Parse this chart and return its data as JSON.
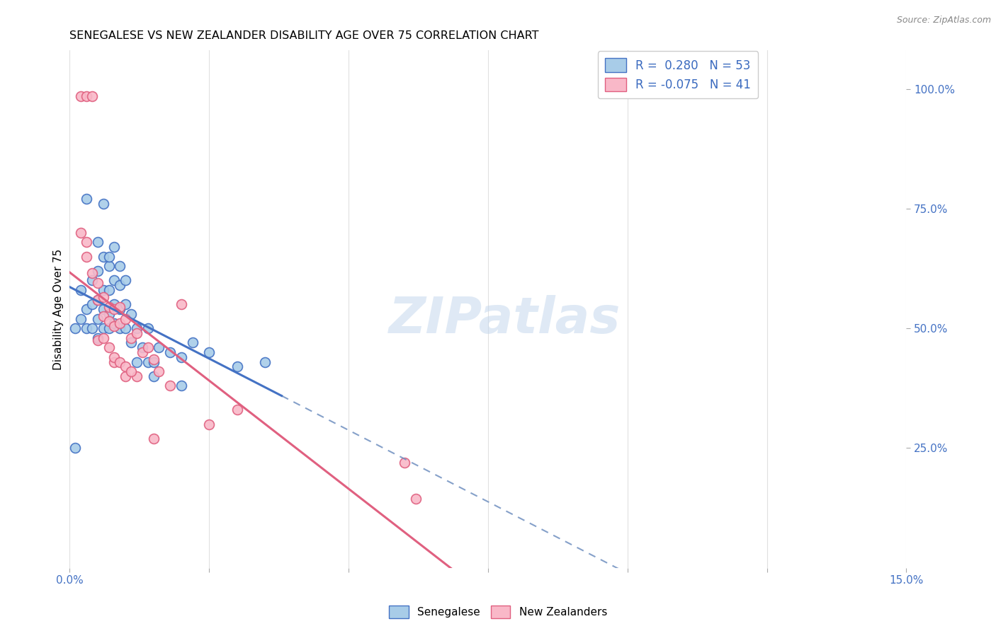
{
  "title": "SENEGALESE VS NEW ZEALANDER DISABILITY AGE OVER 75 CORRELATION CHART",
  "source": "Source: ZipAtlas.com",
  "ylabel": "Disability Age Over 75",
  "xlim": [
    0.0,
    0.15
  ],
  "ylim": [
    0.0,
    1.08
  ],
  "blue_color": "#a8cce8",
  "blue_edge": "#4472c4",
  "pink_color": "#f9b8c8",
  "pink_edge": "#e06080",
  "watermark_text": "ZIPatlas",
  "senegalese_x": [
    0.001,
    0.002,
    0.002,
    0.003,
    0.003,
    0.004,
    0.004,
    0.004,
    0.005,
    0.005,
    0.005,
    0.005,
    0.006,
    0.006,
    0.006,
    0.006,
    0.007,
    0.007,
    0.007,
    0.007,
    0.008,
    0.008,
    0.008,
    0.009,
    0.009,
    0.009,
    0.01,
    0.01,
    0.011,
    0.011,
    0.012,
    0.013,
    0.014,
    0.014,
    0.015,
    0.016,
    0.018,
    0.02,
    0.022,
    0.025,
    0.03,
    0.035,
    0.001,
    0.003,
    0.005,
    0.006,
    0.007,
    0.008,
    0.009,
    0.01,
    0.012,
    0.015,
    0.02
  ],
  "senegalese_y": [
    0.25,
    0.52,
    0.58,
    0.5,
    0.54,
    0.5,
    0.55,
    0.6,
    0.48,
    0.52,
    0.56,
    0.62,
    0.5,
    0.54,
    0.58,
    0.65,
    0.5,
    0.53,
    0.58,
    0.63,
    0.51,
    0.55,
    0.6,
    0.5,
    0.54,
    0.59,
    0.5,
    0.55,
    0.47,
    0.53,
    0.43,
    0.46,
    0.43,
    0.5,
    0.43,
    0.46,
    0.45,
    0.44,
    0.47,
    0.45,
    0.42,
    0.43,
    0.5,
    0.77,
    0.68,
    0.76,
    0.65,
    0.67,
    0.63,
    0.6,
    0.5,
    0.4,
    0.38
  ],
  "nz_x": [
    0.002,
    0.003,
    0.004,
    0.002,
    0.003,
    0.003,
    0.004,
    0.005,
    0.005,
    0.006,
    0.006,
    0.007,
    0.007,
    0.008,
    0.008,
    0.009,
    0.009,
    0.01,
    0.011,
    0.012,
    0.013,
    0.014,
    0.015,
    0.016,
    0.018,
    0.02,
    0.025,
    0.03,
    0.008,
    0.01,
    0.012,
    0.015,
    0.06,
    0.062,
    0.005,
    0.006,
    0.007,
    0.008,
    0.009,
    0.01,
    0.011
  ],
  "nz_y": [
    0.985,
    0.985,
    0.985,
    0.7,
    0.68,
    0.65,
    0.615,
    0.595,
    0.56,
    0.565,
    0.525,
    0.545,
    0.515,
    0.54,
    0.505,
    0.545,
    0.51,
    0.52,
    0.48,
    0.49,
    0.45,
    0.46,
    0.435,
    0.41,
    0.38,
    0.55,
    0.3,
    0.33,
    0.43,
    0.4,
    0.4,
    0.27,
    0.22,
    0.145,
    0.475,
    0.48,
    0.46,
    0.44,
    0.43,
    0.42,
    0.41
  ]
}
